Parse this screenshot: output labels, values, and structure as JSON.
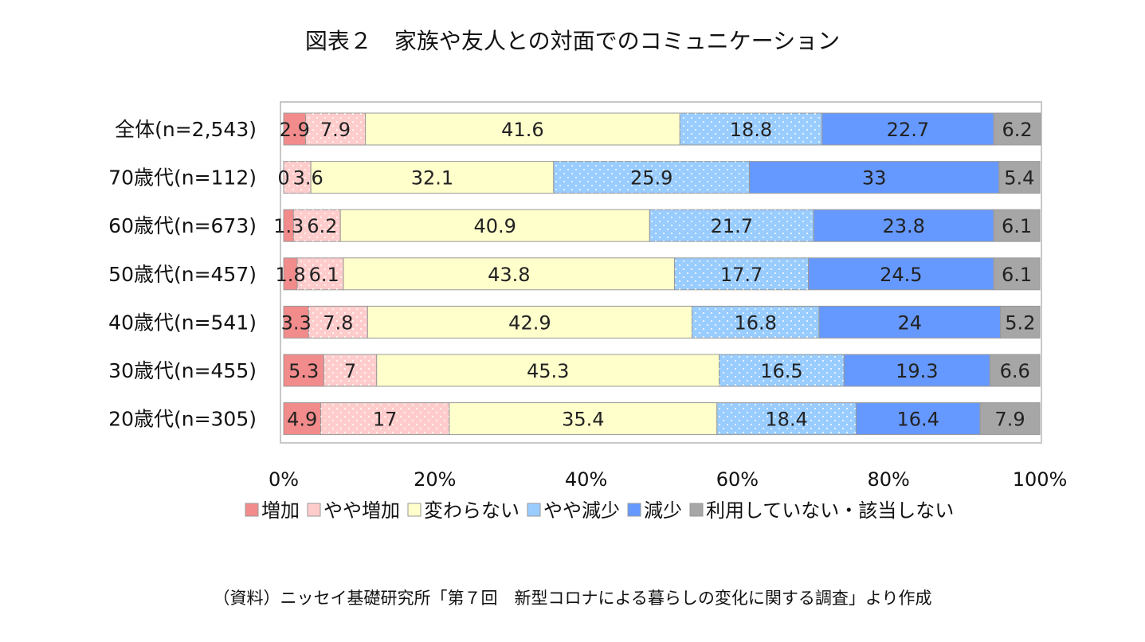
{
  "chart_data": {
    "type": "bar",
    "orientation": "horizontal",
    "stacked": true,
    "title": "図表２　家族や友人との対面でのコミュニケーション",
    "categories": [
      "全体(n=2,543)",
      "70歳代(n=112)",
      "60歳代(n=673)",
      "50歳代(n=457)",
      "40歳代(n=541)",
      "30歳代(n=455)",
      "20歳代(n=305)"
    ],
    "series": [
      {
        "name": "増加",
        "color": "#f28b8b",
        "pattern": "solid",
        "values": [
          2.9,
          0,
          1.3,
          1.8,
          3.3,
          5.3,
          4.9
        ]
      },
      {
        "name": "やや増加",
        "color": "#ffcccc",
        "pattern": "dots",
        "values": [
          7.9,
          3.6,
          6.2,
          6.1,
          7.8,
          7,
          17
        ]
      },
      {
        "name": "変わらない",
        "color": "#ffffcc",
        "pattern": "solid",
        "values": [
          41.6,
          32.1,
          40.9,
          43.8,
          42.9,
          45.3,
          35.4
        ]
      },
      {
        "name": "やや減少",
        "color": "#99ccff",
        "pattern": "dots",
        "values": [
          18.8,
          25.9,
          21.7,
          17.7,
          16.8,
          16.5,
          18.4
        ]
      },
      {
        "name": "減少",
        "color": "#6699ff",
        "pattern": "solid",
        "values": [
          22.7,
          33,
          23.8,
          24.5,
          24,
          19.3,
          16.4
        ]
      },
      {
        "name": "利用していない・該当しない",
        "color": "#a6a6a6",
        "pattern": "solid",
        "values": [
          6.2,
          5.4,
          6.1,
          6.1,
          5.2,
          6.6,
          7.9
        ]
      }
    ],
    "xlim": [
      0,
      100
    ],
    "xticks": [
      "0%",
      "20%",
      "40%",
      "60%",
      "80%",
      "100%"
    ],
    "grid": false,
    "legend_position": "bottom"
  },
  "source": "（資料）ニッセイ基礎研究所「第７回　新型コロナによる暮らしの変化に関する調査」より作成"
}
